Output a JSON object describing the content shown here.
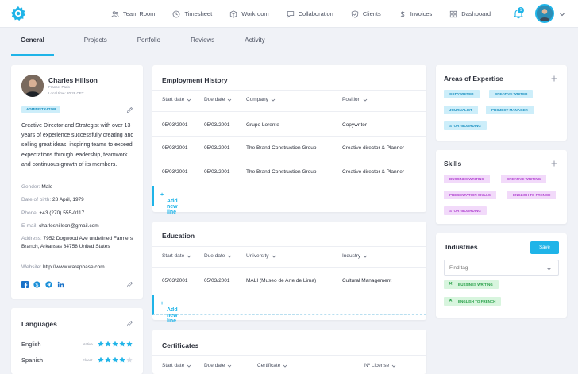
{
  "nav": {
    "items": [
      {
        "label": "Team Room",
        "icon": "users-icon"
      },
      {
        "label": "Timesheet",
        "icon": "clock-icon"
      },
      {
        "label": "Workroom",
        "icon": "cube-icon"
      },
      {
        "label": "Collaboration",
        "icon": "chat-icon"
      },
      {
        "label": "Clients",
        "icon": "shield-icon"
      },
      {
        "label": "Invoices",
        "icon": "dollar-icon"
      },
      {
        "label": "Dashboard",
        "icon": "grid-icon"
      }
    ],
    "notifications": "1"
  },
  "tabs": [
    "General",
    "Projects",
    "Portfolio",
    "Reviews",
    "Activity"
  ],
  "profile": {
    "name": "Charles Hillson",
    "location": "France, Paris",
    "local_time": "Local time: 20:28 CET",
    "role": "ADMINISTRATOR",
    "bio": "Creative Director and Strategist with over 13 years of experience successfully creating and selling great ideas, inspiring teams to exceed expectations through leadership, teamwork and continuous growth of its members.",
    "gender_label": "Gender:",
    "gender": "Male",
    "dob_label": "Date of birth:",
    "dob": "28 April, 1979",
    "phone_label": "Phone:",
    "phone": "+43 (270) 555-0117",
    "email_label": "E-mail:",
    "email": "charleshillson@gmail.com",
    "address_label": "Address:",
    "address": "7952 Dogwood Ave undefined Farmers Branch, Arkansas 84758 United States",
    "website_label": "Website:",
    "website": "http://www.warephase.com"
  },
  "languages": {
    "title": "Languages",
    "items": [
      {
        "name": "English",
        "level": "Native",
        "stars": 5
      },
      {
        "name": "Spanish",
        "level": "Fluent",
        "stars": 4
      }
    ]
  },
  "employment": {
    "title": "Employment History",
    "headers": [
      "Start date",
      "Due date",
      "Company",
      "Position"
    ],
    "rows": [
      [
        "05/03/2001",
        "05/03/2001",
        "Grupo Lorente",
        "Copywriter"
      ],
      [
        "05/03/2001",
        "05/03/2001",
        "The Brand Construction Group",
        "Creative director & Planner"
      ],
      [
        "05/03/2001",
        "05/03/2001",
        "The Brand Construction Group",
        "Creative director & Planner"
      ]
    ],
    "add_label": "Add new line"
  },
  "education": {
    "title": "Education",
    "headers": [
      "Start date",
      "Due date",
      "University",
      "Industry"
    ],
    "rows": [
      [
        "05/03/2001",
        "05/03/2001",
        "MALI (Museo de Arte de Lima)",
        "Cultural Management"
      ]
    ],
    "add_label": "Add new line"
  },
  "certificates": {
    "title": "Certificates",
    "headers": [
      "Start date",
      "Due date",
      "Certificate",
      "Nº License"
    ]
  },
  "expertise": {
    "title": "Areas of Expertise",
    "tags": [
      "COPYWRITER",
      "CREATIVE WRITER",
      "JOURNALIST",
      "PROJECT MANAGER",
      "STORYBOARDING"
    ]
  },
  "skills": {
    "title": "Skills",
    "tags": [
      "BUSSINES WRITING",
      "CREATIVE WRITING",
      "PRESENTATION SKILLS",
      "ENGLISH TO FRENCH",
      "STORYBOARDING"
    ]
  },
  "industries": {
    "title": "Industries",
    "save_label": "Save",
    "find_placeholder": "Find tag",
    "tags": [
      "BUSSINES WRITING",
      "ENGLISH TO FRENCH"
    ]
  },
  "colors": {
    "accent": "#1fb4e8",
    "tag_blue": "#cdeefa",
    "tag_purple": "#f2dafa",
    "tag_green": "#d8f5de",
    "star": "#1fb4e8"
  }
}
